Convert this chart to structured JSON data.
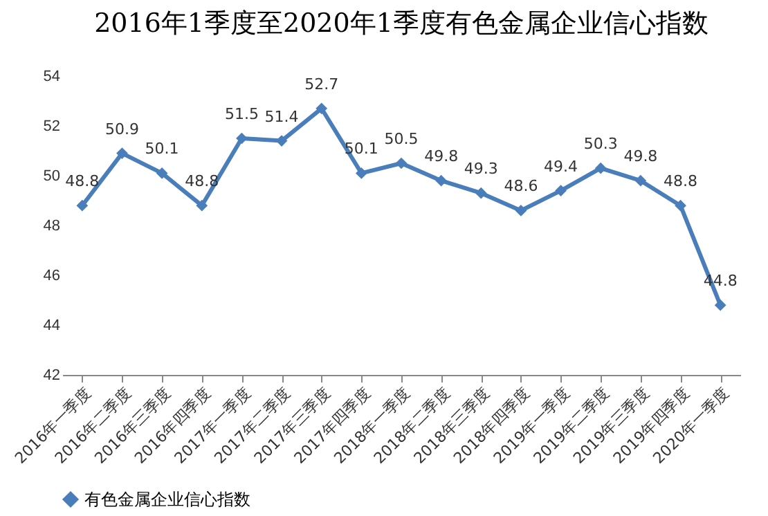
{
  "chart_data": {
    "type": "line",
    "title": "2016年1季度至2020年1季度有色金属企业信心指数",
    "categories": [
      "2016年一季度",
      "2016年二季度",
      "2016年三季度",
      "2016年四季度",
      "2017年一季度",
      "2017年二季度",
      "2017年三季度",
      "2017年四季度",
      "2018年一季度",
      "2018年二季度",
      "2018年三季度",
      "2018年四季度",
      "2019年一季度",
      "2019年二季度",
      "2019年三季度",
      "2019年四季度",
      "2020年一季度"
    ],
    "series": [
      {
        "name": "有色金属企业信心指数",
        "color": "#4a7ebb",
        "values": [
          48.8,
          50.9,
          50.1,
          48.8,
          51.5,
          51.4,
          52.7,
          50.1,
          50.5,
          49.8,
          49.3,
          48.6,
          49.4,
          50.3,
          49.8,
          48.8,
          44.8
        ]
      }
    ],
    "ylim": [
      42,
      54
    ],
    "yticks": [
      42,
      44,
      46,
      48,
      50,
      52,
      54
    ],
    "grid": false,
    "legend": "bottom",
    "marker": "diamond",
    "line_style": "solid",
    "data_labels": true
  }
}
